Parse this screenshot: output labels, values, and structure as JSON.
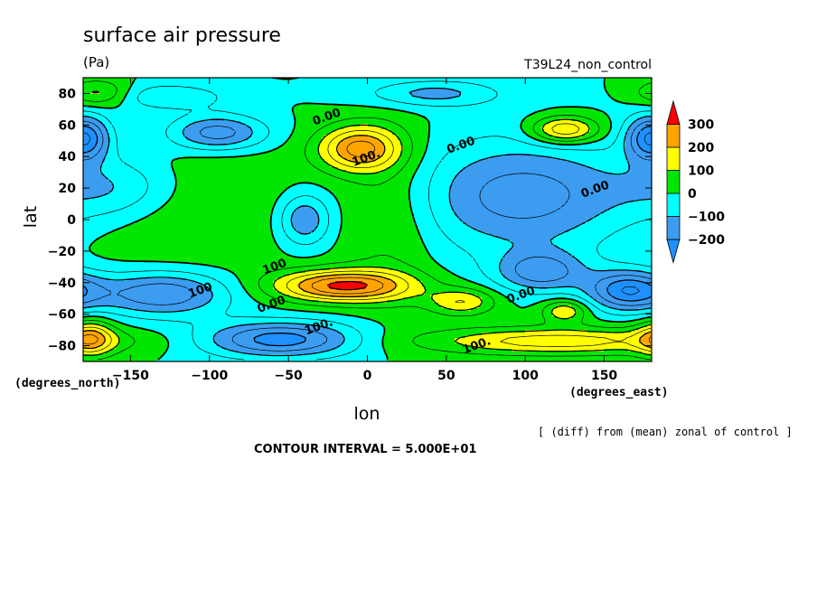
{
  "chart_data": {
    "type": "contour",
    "title": "surface air pressure",
    "units": "(Pa)",
    "run_label": "T39L24_non_control",
    "xlabel": "lon",
    "ylabel": "lat",
    "x_units": "(degrees_east)",
    "y_units": "(degrees_north)",
    "xlim": [
      -180,
      180
    ],
    "ylim": [
      -90,
      90
    ],
    "x_ticks": [
      -150,
      -100,
      -50,
      0,
      50,
      100,
      150
    ],
    "y_ticks": [
      -80,
      -60,
      -40,
      -20,
      0,
      20,
      40,
      60,
      80
    ],
    "note": "[ (diff) from (mean) zonal of control ]",
    "contour_interval_text": "CONTOUR INTERVAL = 5.000E+01",
    "contour_interval": 50,
    "colorbar": {
      "levels": [
        -200,
        -100,
        0,
        100,
        200,
        300
      ],
      "bins": [
        {
          "from": -300,
          "to": -200,
          "color": "#1e90ff"
        },
        {
          "from": -200,
          "to": -100,
          "color": "#3c9cf0"
        },
        {
          "from": -100,
          "to": 0,
          "color": "#00ffff"
        },
        {
          "from": 0,
          "to": 100,
          "color": "#00e600"
        },
        {
          "from": 100,
          "to": 200,
          "color": "#ffff00"
        },
        {
          "from": 200,
          "to": 300,
          "color": "#ffa500"
        },
        {
          "from": 300,
          "to": 400,
          "color": "#ff0000"
        }
      ]
    },
    "field_anomalies": [
      {
        "lon": 165,
        "lat": -45,
        "amp": -240,
        "sx": 18,
        "sy": 9
      },
      {
        "lon": 110,
        "lat": -33,
        "amp": -170,
        "sx": 20,
        "sy": 9
      },
      {
        "lon": -130,
        "lat": -47,
        "amp": -200,
        "sx": 30,
        "sy": 10
      },
      {
        "lon": -55,
        "lat": -76,
        "amp": -230,
        "sx": 35,
        "sy": 8
      },
      {
        "lon": -95,
        "lat": 55,
        "amp": -190,
        "sx": 22,
        "sy": 8
      },
      {
        "lon": -175,
        "lat": 52,
        "amp": -150,
        "sx": 10,
        "sy": 10
      },
      {
        "lon": 175,
        "lat": 52,
        "amp": -140,
        "sx": 10,
        "sy": 10
      },
      {
        "lon": 100,
        "lat": 15,
        "amp": -180,
        "sx": 50,
        "sy": 25
      },
      {
        "lon": -40,
        "lat": 0,
        "amp": -160,
        "sx": 12,
        "sy": 12
      },
      {
        "lon": -160,
        "lat": 20,
        "amp": -120,
        "sx": 30,
        "sy": 15
      },
      {
        "lon": -130,
        "lat": 78,
        "amp": -100,
        "sx": 30,
        "sy": 6
      },
      {
        "lon": 40,
        "lat": 80,
        "amp": -120,
        "sx": 30,
        "sy": 6
      },
      {
        "lon": -5,
        "lat": 45,
        "amp": 260,
        "sx": 18,
        "sy": 10
      },
      {
        "lon": -15,
        "lat": -42,
        "amp": 310,
        "sx": 30,
        "sy": 7
      },
      {
        "lon": 120,
        "lat": -77,
        "amp": 180,
        "sx": 60,
        "sy": 6
      },
      {
        "lon": 125,
        "lat": 57,
        "amp": 220,
        "sx": 15,
        "sy": 6
      },
      {
        "lon": 60,
        "lat": -52,
        "amp": 150,
        "sx": 15,
        "sy": 6
      },
      {
        "lon": 125,
        "lat": -58,
        "amp": 150,
        "sx": 10,
        "sy": 5
      },
      {
        "lon": -175,
        "lat": -75,
        "amp": 180,
        "sx": 10,
        "sy": 8
      },
      {
        "lon": -170,
        "lat": 80,
        "amp": 140,
        "sx": 15,
        "sy": 6
      },
      {
        "lon": -120,
        "lat": 10,
        "amp": 60,
        "sx": 60,
        "sy": 30
      },
      {
        "lon": 15,
        "lat": 5,
        "amp": 70,
        "sx": 20,
        "sy": 40
      }
    ],
    "contour_labels": [
      {
        "text": "0.00",
        "lon": -25,
        "lat": 63
      },
      {
        "text": "100.",
        "lon": 0,
        "lat": 37
      },
      {
        "text": "0.00",
        "lon": 60,
        "lat": 45
      },
      {
        "text": "0.00",
        "lon": 145,
        "lat": 17
      },
      {
        "text": "100",
        "lon": -58,
        "lat": -32
      },
      {
        "text": "100",
        "lon": -105,
        "lat": -47
      },
      {
        "text": "0.00",
        "lon": -60,
        "lat": -56
      },
      {
        "text": "100.",
        "lon": -30,
        "lat": -70
      },
      {
        "text": "0.00",
        "lon": 98,
        "lat": -50
      },
      {
        "text": "100.",
        "lon": 70,
        "lat": -82
      }
    ]
  }
}
